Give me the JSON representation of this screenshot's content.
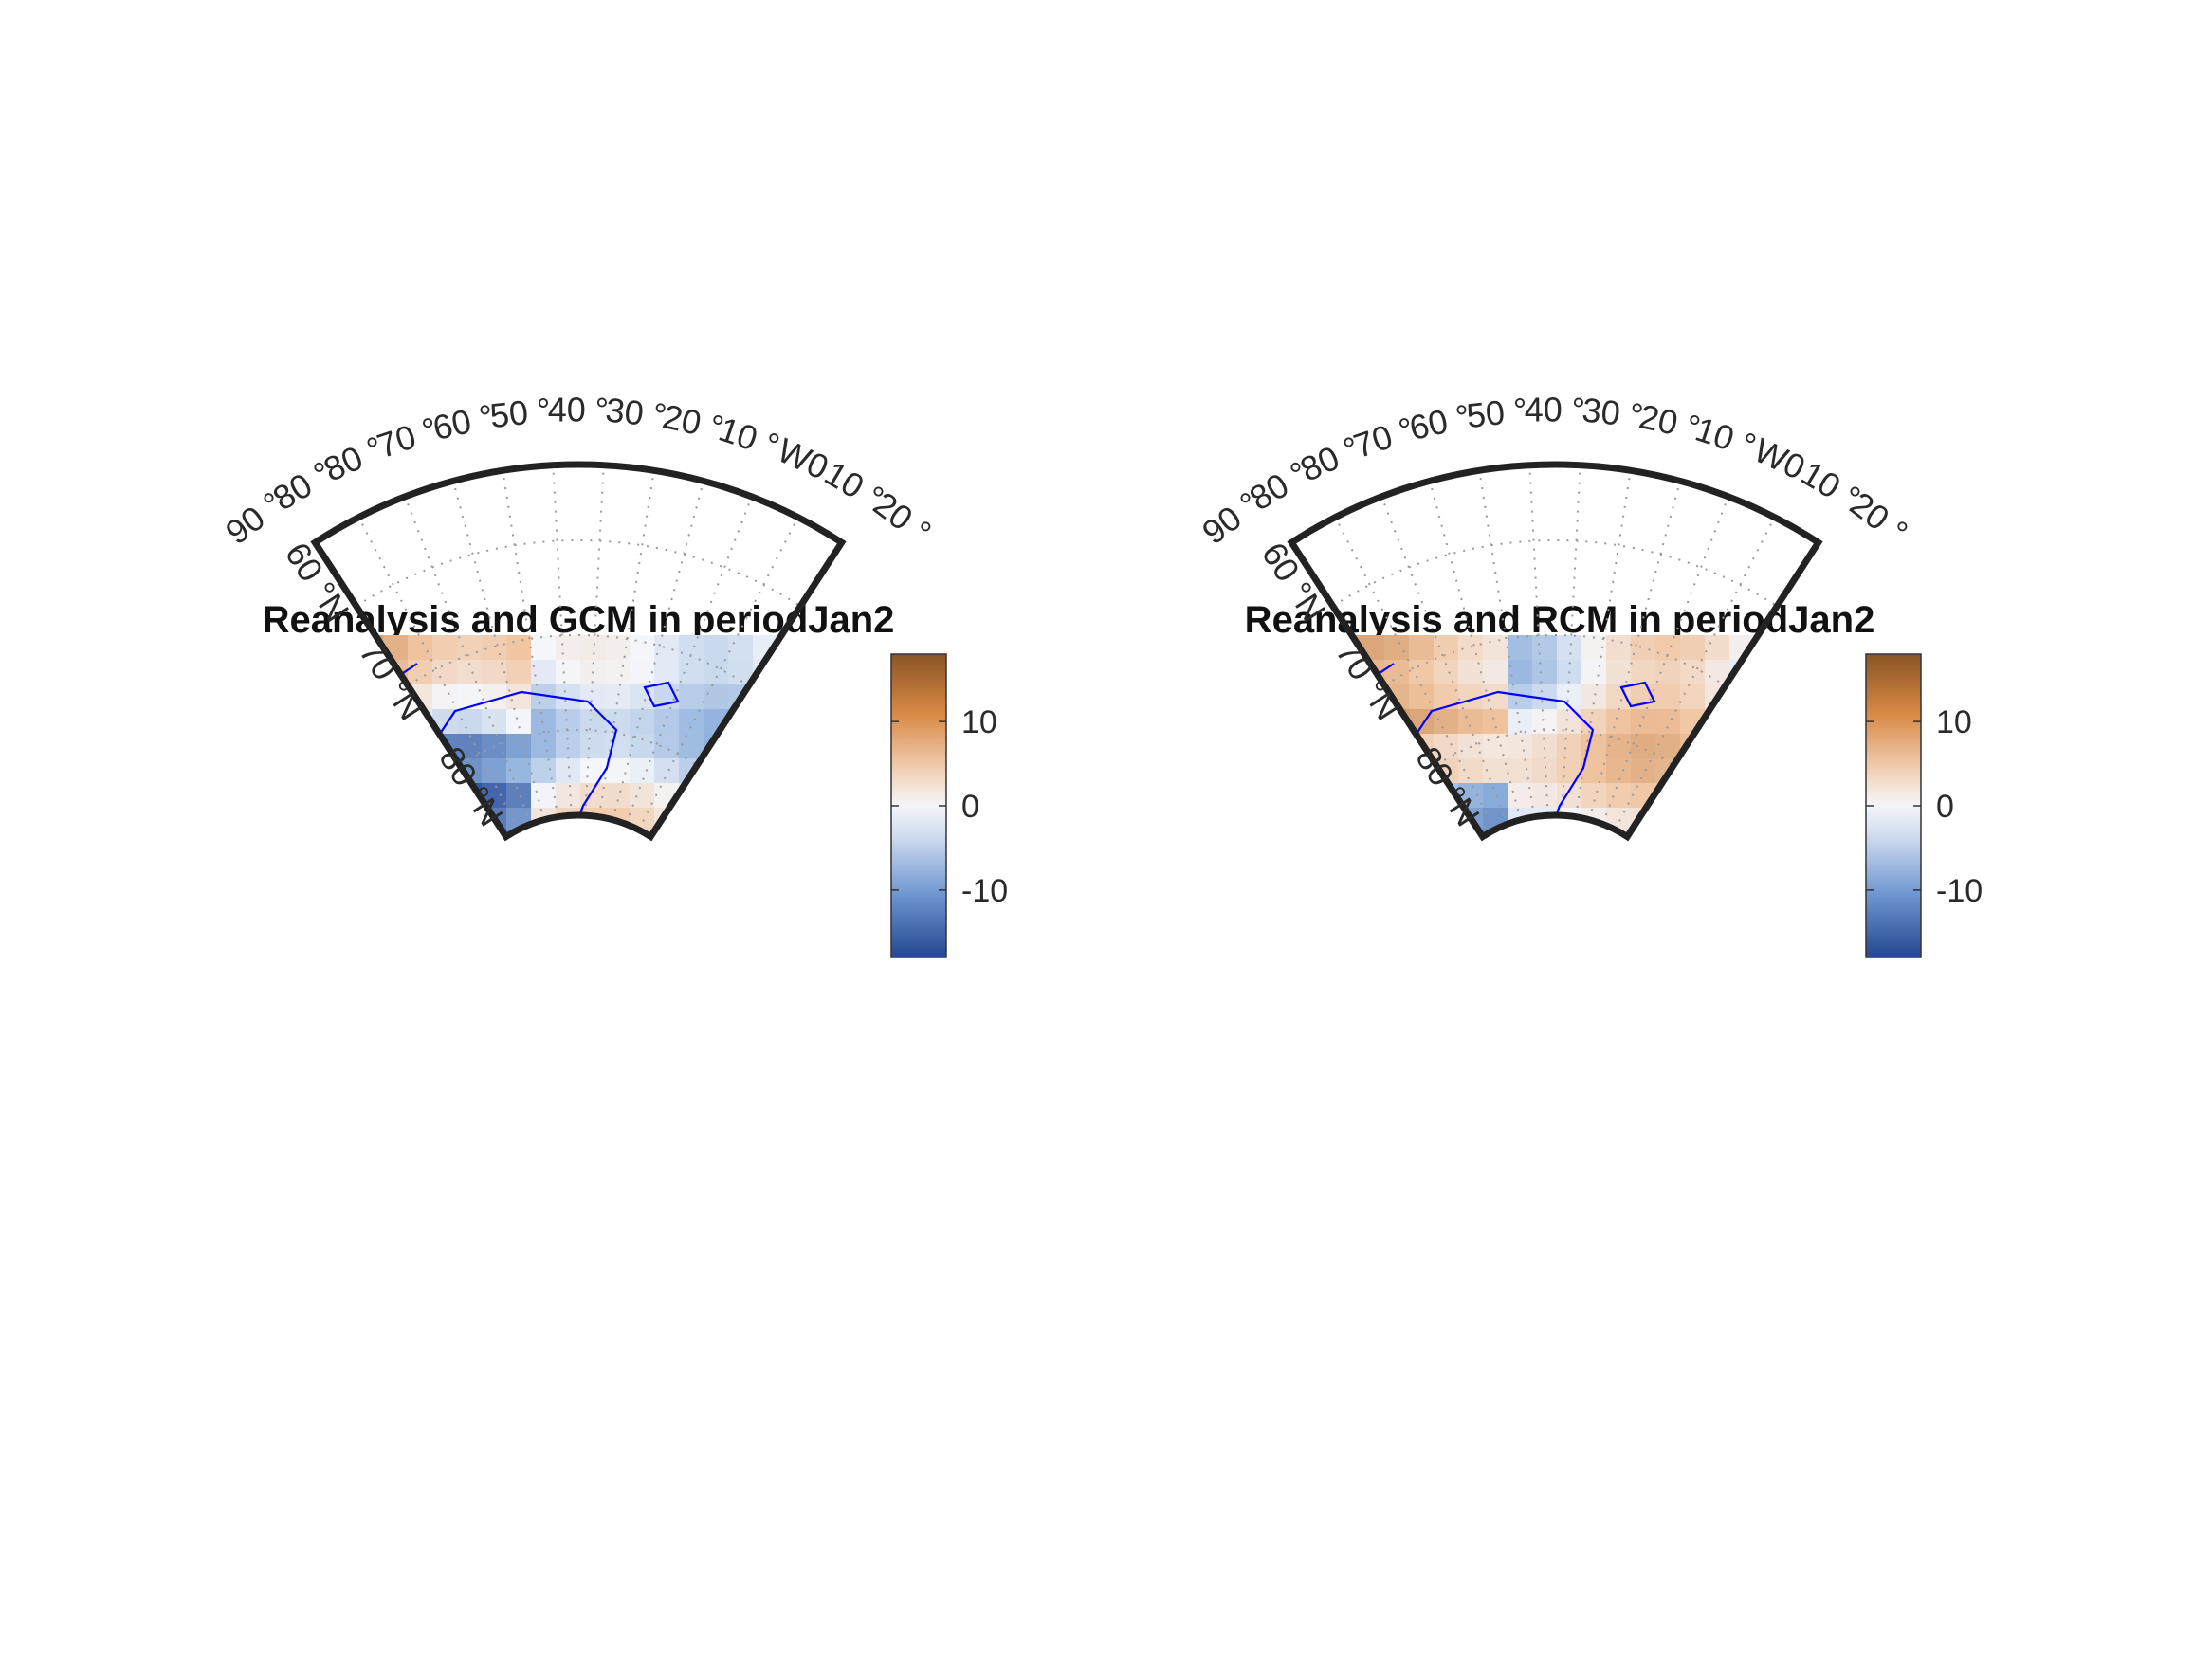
{
  "figure": {
    "panels": [
      {
        "id": "gcm",
        "title": "Reanalysis and GCM in periodJan2",
        "lat_labels": [
          "80 °N",
          "70 °N",
          "60 °N"
        ],
        "lon_labels": [
          "90 °",
          "80 °",
          "80 °",
          "70 °",
          "60 °",
          "50 °",
          "40 °",
          "30 °",
          "20 °",
          "10 °",
          "W0",
          "10 °",
          "20 °"
        ],
        "colorbar": {
          "ticks": [
            "10",
            "0",
            "-10"
          ],
          "range": [
            -18,
            18
          ],
          "colormap": "brown-white-blue diverging"
        }
      },
      {
        "id": "rcm",
        "title": "Reanalysis and RCM in periodJan2",
        "lat_labels": [
          "80 °N",
          "70 °N",
          "60 °N"
        ],
        "lon_labels": [
          "90 °",
          "80 °",
          "80 °",
          "70 °",
          "60 °",
          "50 °",
          "40 °",
          "30 °",
          "20 °",
          "10 °",
          "W0",
          "10 °",
          "20 °"
        ],
        "colorbar": {
          "ticks": [
            "10",
            "0",
            "-10"
          ],
          "range": [
            -18,
            18
          ],
          "colormap": "brown-white-blue diverging"
        }
      }
    ],
    "colors": {
      "positive": "#a0652a",
      "warm": "#e79a52",
      "neutral": "#f4f6fa",
      "cool": "#8fb1dd",
      "negative": "#2c4e9c",
      "coastline": "#0000ff",
      "frame": "#222222"
    }
  }
}
